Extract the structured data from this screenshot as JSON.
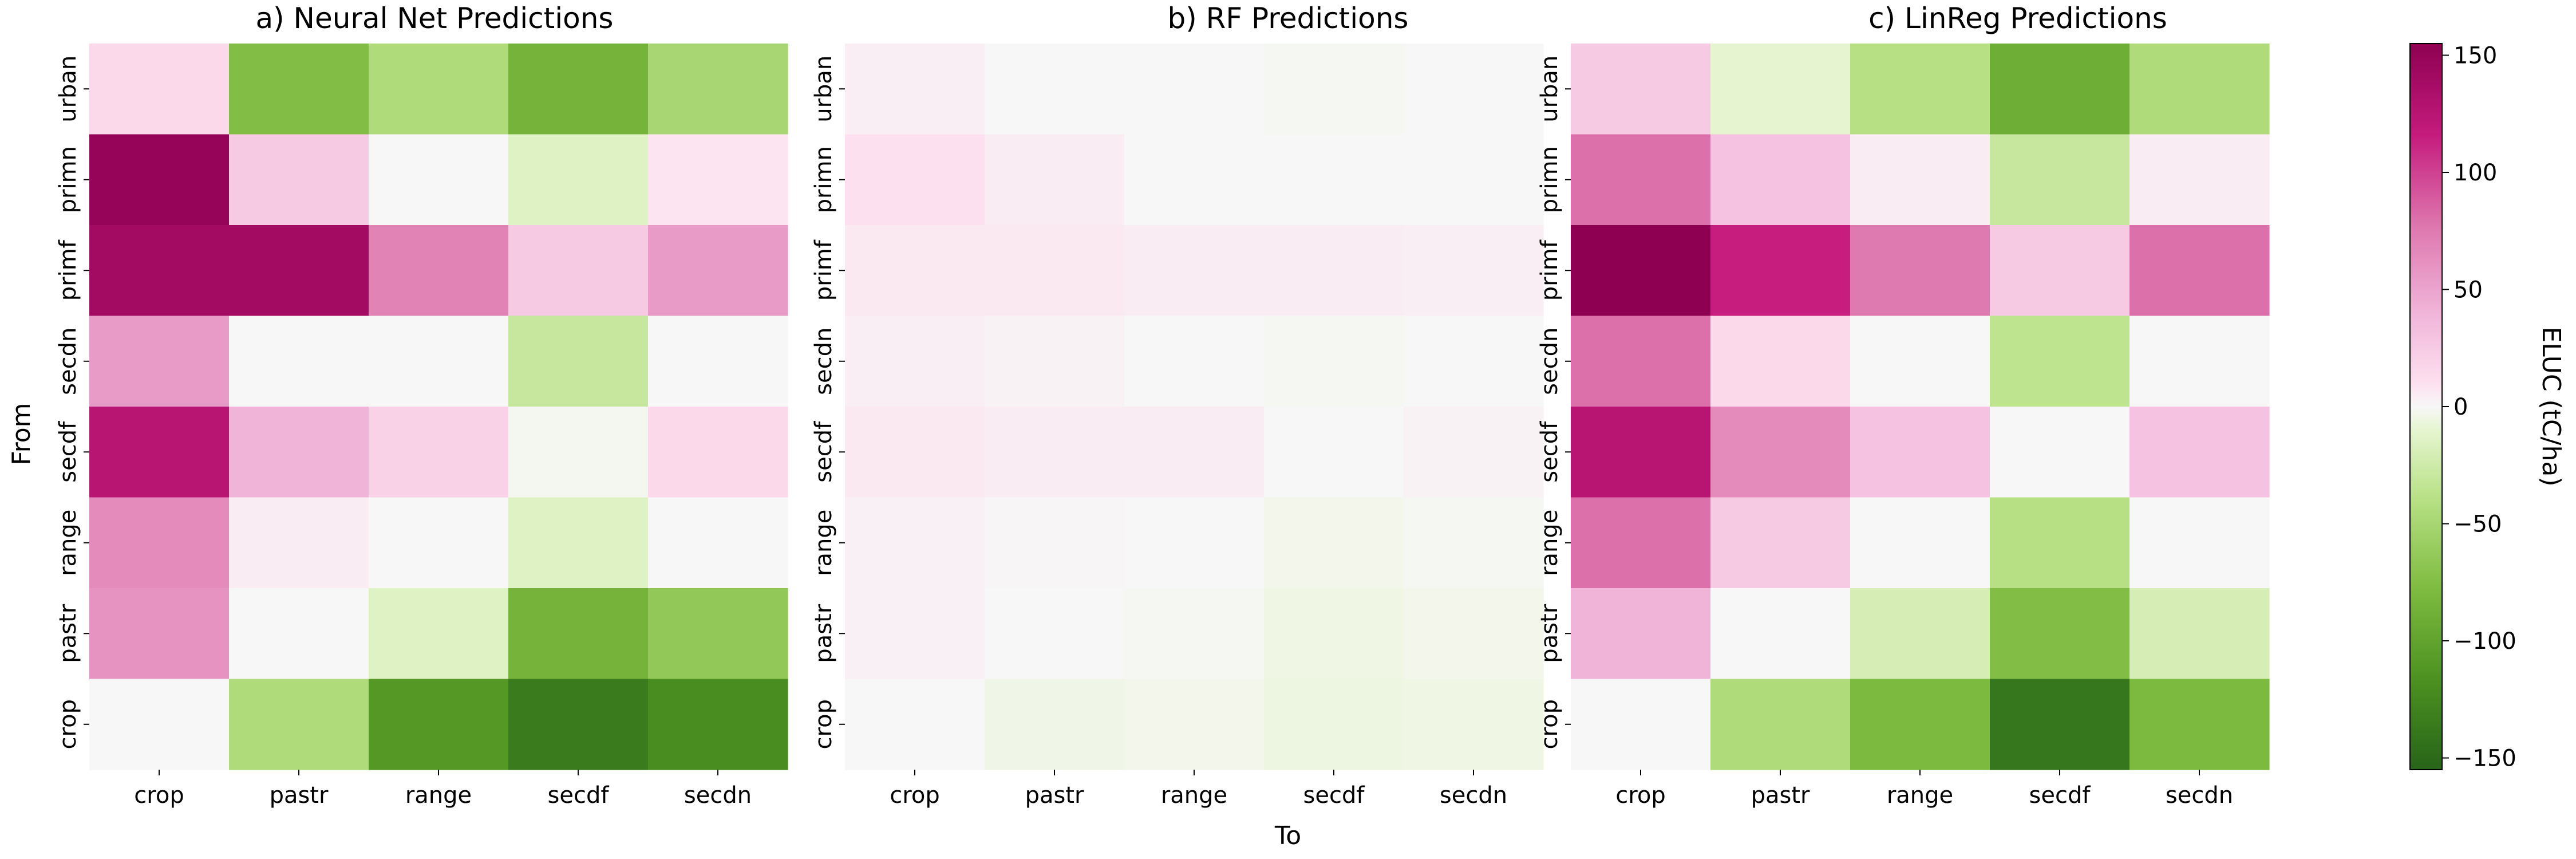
{
  "chart_data": {
    "type": "heatmap",
    "xlabel": "To",
    "ylabel": "From",
    "row_labels": [
      "urban",
      "primn",
      "primf",
      "secdn",
      "secdf",
      "range",
      "pastr",
      "crop"
    ],
    "col_labels": [
      "crop",
      "pastr",
      "range",
      "secdf",
      "secdn"
    ],
    "colorbar": {
      "label": "ELUC (tC/ha)",
      "range": [
        -155,
        155
      ],
      "ticks": [
        150,
        100,
        50,
        0,
        -50,
        -100,
        -150
      ],
      "colormap": "PiYG_r",
      "color_stops": [
        {
          "v": -155,
          "c": "#276419"
        },
        {
          "v": -116,
          "c": "#4d9221"
        },
        {
          "v": -77,
          "c": "#7fbc41"
        },
        {
          "v": -39,
          "c": "#b8e186"
        },
        {
          "v": -10,
          "c": "#e6f5d0"
        },
        {
          "v": 0,
          "c": "#f7f7f7"
        },
        {
          "v": 10,
          "c": "#fde0ef"
        },
        {
          "v": 39,
          "c": "#f1b6da"
        },
        {
          "v": 77,
          "c": "#de77ae"
        },
        {
          "v": 116,
          "c": "#c51b7d"
        },
        {
          "v": 155,
          "c": "#8e0152"
        }
      ]
    },
    "panels": [
      {
        "title": "a) Neural Net Predictions",
        "values": [
          [
            15,
            -75,
            -45,
            -85,
            -50
          ],
          [
            150,
            25,
            0,
            -15,
            8
          ],
          [
            140,
            140,
            70,
            25,
            55
          ],
          [
            55,
            0,
            0,
            -30,
            0
          ],
          [
            125,
            40,
            20,
            -2,
            15
          ],
          [
            65,
            5,
            0,
            -15,
            0
          ],
          [
            60,
            0,
            -15,
            -85,
            -65
          ],
          [
            0,
            -45,
            -110,
            -135,
            -120
          ]
        ]
      },
      {
        "title": "b) RF Predictions",
        "values": [
          [
            4,
            0,
            0,
            -1,
            0
          ],
          [
            10,
            5,
            0,
            0,
            0
          ],
          [
            6,
            6,
            5,
            5,
            4
          ],
          [
            4,
            2,
            0,
            -1,
            0
          ],
          [
            6,
            5,
            5,
            0,
            2
          ],
          [
            3,
            1,
            0,
            -3,
            -1
          ],
          [
            3,
            0,
            -1,
            -5,
            -3
          ],
          [
            0,
            -4,
            -3,
            -6,
            -5
          ]
        ]
      },
      {
        "title": "c) LinReg Predictions",
        "values": [
          [
            25,
            -10,
            -40,
            -90,
            -45
          ],
          [
            80,
            30,
            5,
            -30,
            5
          ],
          [
            155,
            115,
            75,
            25,
            80
          ],
          [
            80,
            15,
            0,
            -35,
            0
          ],
          [
            125,
            65,
            30,
            0,
            30
          ],
          [
            80,
            25,
            0,
            -40,
            0
          ],
          [
            40,
            0,
            -20,
            -75,
            -20
          ],
          [
            0,
            -45,
            -80,
            -140,
            -80
          ]
        ]
      }
    ]
  }
}
